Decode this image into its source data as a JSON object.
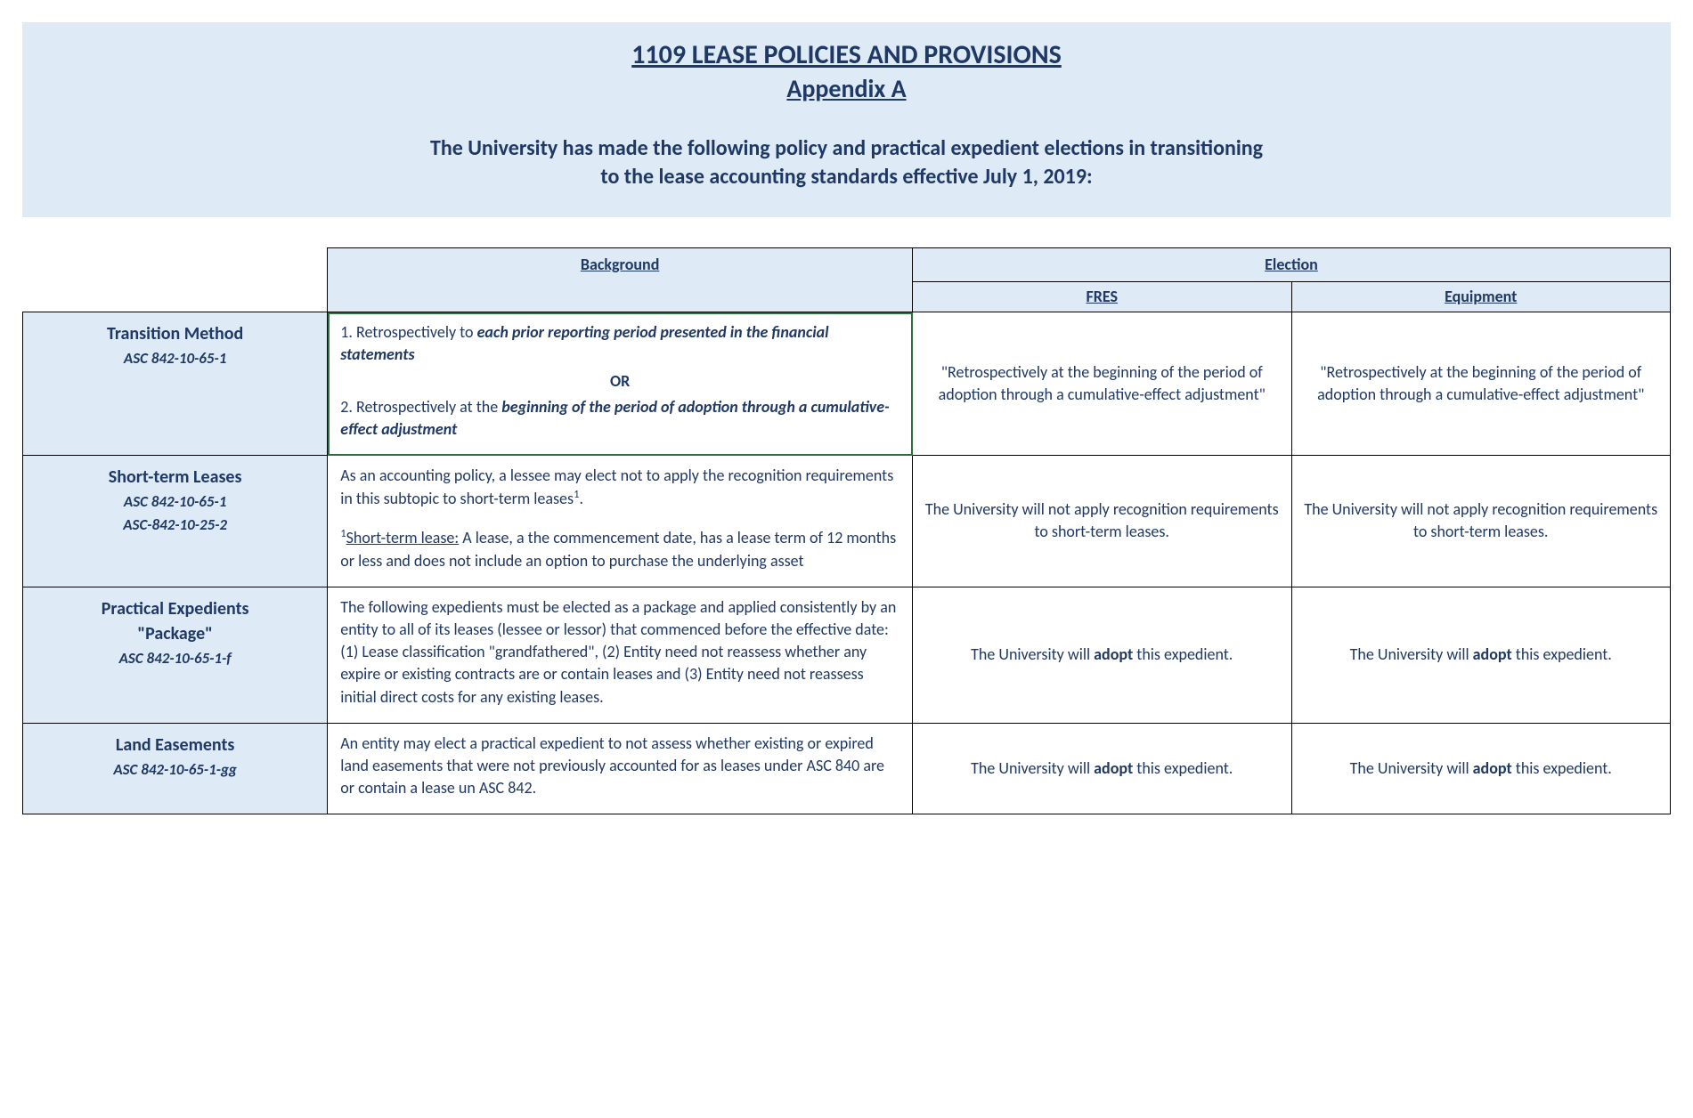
{
  "colors": {
    "band_bg": "#deebf7",
    "text": "#1f3864",
    "border": "#000000",
    "highlight_border": "#2f6f3e",
    "page_bg": "#ffffff"
  },
  "typography": {
    "family": "Calibri",
    "title_size_pt": 22,
    "appendix_size_pt": 21,
    "intro_size_pt": 18,
    "body_size_pt": 13,
    "rowhdr_title_size_pt": 15
  },
  "header": {
    "title": "1109 LEASE POLICIES AND PROVISIONS",
    "appendix": " Appendix A",
    "intro_line1": "The University has made the following policy and practical expedient elections in transitioning",
    "intro_line2": "to the lease accounting standards effective July 1, 2019:"
  },
  "table": {
    "columns": {
      "background": "Background",
      "election": "Election",
      "fres": "FRES",
      "equipment": "Equipment"
    },
    "rows": [
      {
        "title": "Transition Method",
        "refs": [
          "ASC 842-10-65-1"
        ],
        "background": {
          "item1_lead": "1. Retrospectively to ",
          "item1_emph": "each prior reporting period presented in the financial statements",
          "or": "OR",
          "item2_lead": "2. Retrospectively at the ",
          "item2_emph": "beginning of the period of adoption through a cumulative-effect adjustment"
        },
        "fres": "\"Retrospectively at the beginning of the period of adoption through a cumulative-effect adjustment\"",
        "equipment": "\"Retrospectively at the beginning of the period of adoption through a cumulative-effect adjustment\""
      },
      {
        "title": "Short-term Leases",
        "refs": [
          "ASC 842-10-65-1",
          "ASC-842-10-25-2"
        ],
        "background": {
          "para1_a": "As an accounting policy, a lessee may elect not to apply the recognition requirements in this subtopic to short-term leases",
          "para1_sup": "1",
          "para1_b": ".",
          "footnote_sup": "1",
          "footnote_label": "Short-term lease:",
          "footnote_text": " A lease, a the commencement date, has a lease term of 12 months or less and does not include an option to purchase the underlying asset"
        },
        "fres": "The University will not apply recognition requirements to short-term leases.",
        "equipment": "The University will not apply recognition requirements to short-term leases."
      },
      {
        "title": "Practical Expedients \"Package\"",
        "title_line1": "Practical Expedients",
        "title_line2": "\"Package\"",
        "refs": [
          "ASC 842-10-65-1-f"
        ],
        "background": {
          "text": "The following expedients must be elected as a package and applied consistently by an entity to all of its leases (lessee or lessor) that commenced before the effective date:  (1) Lease classification \"grandfathered\", (2) Entity need not reassess whether any expire or existing contracts are or contain leases and (3) Entity need not reassess initial direct costs for any existing leases."
        },
        "fres_pre": "The University will ",
        "fres_b": "adopt",
        "fres_post": " this expedient.",
        "equipment_pre": "The University will ",
        "equipment_b": "adopt",
        "equipment_post": " this expedient."
      },
      {
        "title": "Land Easements",
        "refs": [
          "ASC 842-10-65-1-gg"
        ],
        "background": {
          "text": "An entity may elect a practical expedient to not assess whether existing or expired land easements that were not previously accounted for as leases under ASC 840 are or contain a lease un ASC 842."
        },
        "fres_pre": "The University will ",
        "fres_b": "adopt",
        "fres_post": " this expedient.",
        "equipment_pre": "The University will ",
        "equipment_b": "adopt",
        "equipment_post": " this expedient."
      }
    ]
  }
}
